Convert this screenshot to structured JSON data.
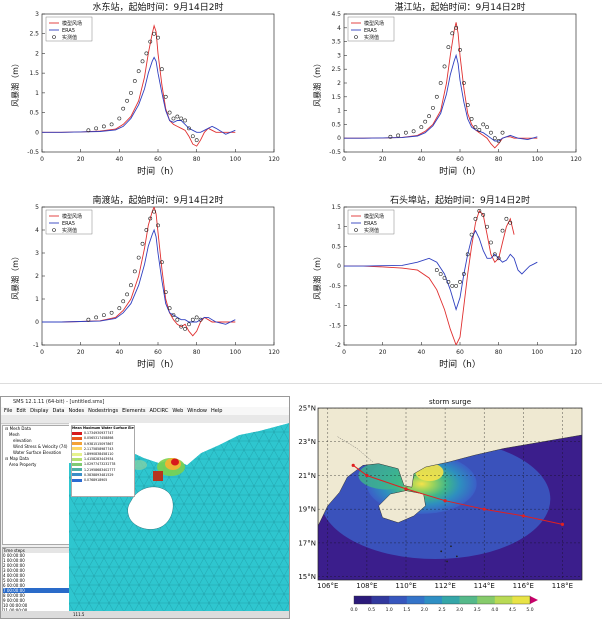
{
  "chart_data": [
    {
      "type": "line",
      "title": "水东站，起始时间：9月14日2时",
      "xlabel": "时间（h）",
      "ylabel": "风暴潮（m）",
      "xlim": [
        0,
        120
      ],
      "ylim": [
        -0.5,
        3
      ],
      "xticks": [
        "0",
        "20",
        "40",
        "60",
        "80",
        "100",
        "120"
      ],
      "yticks": [
        "-0.5",
        "0",
        "0.5",
        "1",
        "1.5",
        "2",
        "2.5",
        "3"
      ],
      "legend": [
        "模型风场",
        "ERA5",
        "实测值"
      ],
      "series": [
        {
          "name": "模型风场",
          "x": [
            0,
            10,
            20,
            30,
            38,
            42,
            46,
            50,
            53,
            55,
            57,
            58,
            59,
            60,
            62,
            64,
            66,
            68,
            70,
            72,
            74,
            76,
            78,
            80,
            82,
            84,
            86,
            88,
            90,
            95,
            100
          ],
          "y": [
            0,
            0,
            0.01,
            0.03,
            0.08,
            0.2,
            0.4,
            0.8,
            1.4,
            2.0,
            2.5,
            2.7,
            2.55,
            2.0,
            1.2,
            0.6,
            0.3,
            0.2,
            0.15,
            0.1,
            0.05,
            -0.1,
            -0.3,
            -0.35,
            -0.2,
            0,
            0.1,
            0.05,
            0,
            0,
            0
          ]
        },
        {
          "name": "ERA5",
          "x": [
            0,
            10,
            20,
            30,
            38,
            42,
            46,
            50,
            53,
            55,
            57,
            58,
            59,
            60,
            62,
            64,
            66,
            68,
            70,
            72,
            74,
            76,
            78,
            80,
            82,
            84,
            86,
            88,
            90,
            95,
            100
          ],
          "y": [
            0,
            0,
            0.01,
            0.02,
            0.06,
            0.15,
            0.35,
            0.7,
            1.1,
            1.5,
            1.8,
            1.9,
            1.8,
            1.5,
            1.0,
            0.55,
            0.3,
            0.25,
            0.3,
            0.3,
            0.2,
            0.1,
            0.05,
            0,
            0,
            0.05,
            0.1,
            0.15,
            0.1,
            -0.05,
            0.05
          ]
        },
        {
          "name": "实测值",
          "x": [
            24,
            28,
            32,
            36,
            40,
            42,
            44,
            46,
            48,
            50,
            52,
            54,
            56,
            58,
            60,
            62,
            64,
            66,
            68,
            70,
            72,
            74,
            76,
            78,
            80
          ],
          "y": [
            0.05,
            0.1,
            0.15,
            0.2,
            0.35,
            0.6,
            0.8,
            1.0,
            1.3,
            1.55,
            1.8,
            2.0,
            2.3,
            2.5,
            2.4,
            1.6,
            0.9,
            0.5,
            0.35,
            0.4,
            0.35,
            0.3,
            0.1,
            -0.1,
            -0.2
          ]
        }
      ]
    },
    {
      "type": "line",
      "title": "湛江站，起始时间：9月14日2时",
      "xlabel": "时间（h）",
      "ylabel": "风暴潮（m）",
      "xlim": [
        0,
        120
      ],
      "ylim": [
        -0.5,
        4.5
      ],
      "xticks": [
        "0",
        "20",
        "40",
        "60",
        "80",
        "100",
        "120"
      ],
      "yticks": [
        "-0.5",
        "0",
        "0.5",
        "1",
        "1.5",
        "2",
        "2.5",
        "3",
        "3.5",
        "4",
        "4.5"
      ],
      "legend": [
        "模型风场",
        "ERA5",
        "实测值"
      ],
      "series": [
        {
          "name": "模型风场",
          "x": [
            0,
            10,
            20,
            30,
            38,
            42,
            46,
            50,
            53,
            55,
            57,
            58,
            59,
            60,
            62,
            64,
            66,
            68,
            70,
            72,
            74,
            76,
            78,
            80,
            82,
            84,
            86,
            88,
            90,
            95,
            100
          ],
          "y": [
            0,
            0,
            0.01,
            0.03,
            0.1,
            0.25,
            0.5,
            1.0,
            2.0,
            3.0,
            3.9,
            4.2,
            3.8,
            3.0,
            1.8,
            0.9,
            0.5,
            0.3,
            0.2,
            0.1,
            0,
            -0.2,
            -0.35,
            -0.2,
            0,
            0.05,
            0.05,
            0,
            0,
            0,
            0
          ]
        },
        {
          "name": "ERA5",
          "x": [
            0,
            10,
            20,
            30,
            38,
            42,
            46,
            50,
            53,
            55,
            57,
            58,
            59,
            60,
            62,
            64,
            66,
            68,
            70,
            72,
            74,
            76,
            78,
            80,
            82,
            84,
            86,
            88,
            90,
            95,
            100
          ],
          "y": [
            0,
            0,
            0.01,
            0.02,
            0.08,
            0.2,
            0.45,
            0.9,
            1.6,
            2.3,
            2.8,
            3.0,
            2.7,
            2.1,
            1.3,
            0.7,
            0.4,
            0.3,
            0.25,
            0.2,
            0.1,
            0,
            -0.1,
            -0.1,
            0,
            0.05,
            0.1,
            0.05,
            0,
            -0.05,
            0.05
          ]
        },
        {
          "name": "实测值",
          "x": [
            24,
            28,
            32,
            36,
            40,
            42,
            44,
            46,
            48,
            50,
            52,
            54,
            56,
            58,
            60,
            62,
            64,
            66,
            68,
            70,
            72,
            74,
            76,
            78,
            80,
            82
          ],
          "y": [
            0.05,
            0.1,
            0.2,
            0.25,
            0.4,
            0.6,
            0.8,
            1.1,
            1.5,
            2.0,
            2.6,
            3.3,
            3.8,
            4.0,
            3.2,
            2.0,
            1.2,
            0.7,
            0.4,
            0.3,
            0.5,
            0.4,
            0.2,
            0,
            -0.1,
            0.2
          ]
        }
      ]
    },
    {
      "type": "line",
      "title": "南渡站，起始时间：9月14日2时",
      "xlabel": "时间（h）",
      "ylabel": "风暴潮（m）",
      "xlim": [
        0,
        120
      ],
      "ylim": [
        -1,
        5
      ],
      "xticks": [
        "0",
        "20",
        "40",
        "60",
        "80",
        "100",
        "120"
      ],
      "yticks": [
        "-1",
        "0",
        "1",
        "2",
        "3",
        "4",
        "5"
      ],
      "legend": [
        "模型风场",
        "ERA5",
        "实测值"
      ],
      "series": [
        {
          "name": "模型风场",
          "x": [
            0,
            10,
            20,
            30,
            38,
            42,
            46,
            50,
            53,
            55,
            57,
            58,
            59,
            60,
            62,
            64,
            66,
            68,
            70,
            72,
            74,
            76,
            78,
            80,
            82,
            84,
            86,
            88,
            90,
            95,
            100
          ],
          "y": [
            0,
            0,
            0.02,
            0.05,
            0.2,
            0.5,
            1.0,
            2.0,
            3.2,
            4.2,
            4.8,
            5.0,
            4.7,
            3.9,
            2.3,
            1.0,
            0.4,
            0.1,
            -0.1,
            -0.2,
            -0.1,
            -0.4,
            -0.6,
            -0.4,
            0,
            0.2,
            0.1,
            0,
            0,
            0,
            0
          ]
        },
        {
          "name": "ERA5",
          "x": [
            0,
            10,
            20,
            30,
            38,
            42,
            46,
            50,
            53,
            55,
            57,
            58,
            59,
            60,
            62,
            64,
            66,
            68,
            70,
            72,
            74,
            76,
            78,
            80,
            82,
            84,
            86,
            88,
            90,
            95,
            100
          ],
          "y": [
            0,
            0,
            0.02,
            0.04,
            0.15,
            0.4,
            0.8,
            1.6,
            2.5,
            3.3,
            3.8,
            4.0,
            3.7,
            3.0,
            1.8,
            0.8,
            0.4,
            0.3,
            0.2,
            0.1,
            0.1,
            0,
            0,
            0,
            0.1,
            0.2,
            0.2,
            0.1,
            0,
            -0.1,
            0.1
          ]
        },
        {
          "name": "实测值",
          "x": [
            24,
            28,
            32,
            36,
            40,
            42,
            44,
            46,
            48,
            50,
            52,
            54,
            56,
            58,
            60,
            62,
            64,
            66,
            68,
            70,
            72,
            74,
            76,
            78,
            80,
            82
          ],
          "y": [
            0.1,
            0.2,
            0.3,
            0.4,
            0.6,
            0.9,
            1.2,
            1.6,
            2.2,
            2.8,
            3.4,
            4.0,
            4.5,
            4.8,
            4.2,
            2.6,
            1.3,
            0.6,
            0.3,
            0.1,
            -0.2,
            -0.3,
            -0.1,
            0.1,
            0.2,
            0.1
          ]
        }
      ]
    },
    {
      "type": "line",
      "title": "石头埠站，起始时间：9月14日2时",
      "xlabel": "时间（h）",
      "ylabel": "风暴潮（m）",
      "xlim": [
        0,
        120
      ],
      "ylim": [
        -2,
        1.5
      ],
      "xticks": [
        "0",
        "20",
        "40",
        "60",
        "80",
        "100",
        "120"
      ],
      "yticks": [
        "-2",
        "-1.5",
        "-1",
        "-0.5",
        "0",
        "0.5",
        "1",
        "1.5"
      ],
      "legend": [
        "模型风场",
        "ERA5",
        "实测值"
      ],
      "series": [
        {
          "name": "模型风场",
          "x": [
            0,
            10,
            20,
            30,
            38,
            44,
            48,
            52,
            55,
            58,
            60,
            62,
            64,
            66,
            68,
            70,
            72,
            74,
            76,
            78,
            80,
            82,
            84,
            86,
            88
          ],
          "y": [
            0,
            0,
            -0.02,
            -0.05,
            -0.1,
            -0.3,
            -0.6,
            -1.1,
            -1.6,
            -2.0,
            -1.8,
            -1.0,
            -0.2,
            0.5,
            1.1,
            1.4,
            1.3,
            0.8,
            0.3,
            0.1,
            0.2,
            0.6,
            1.0,
            1.2,
            0.8
          ]
        },
        {
          "name": "ERA5",
          "x": [
            0,
            10,
            20,
            30,
            38,
            44,
            48,
            52,
            55,
            58,
            60,
            62,
            64,
            66,
            68,
            70,
            72,
            74,
            76,
            78,
            80,
            82,
            84,
            86,
            88,
            90,
            92,
            94,
            96,
            98,
            100
          ],
          "y": [
            0,
            0,
            0.01,
            0.02,
            0.1,
            0.2,
            0.1,
            -0.2,
            -0.6,
            -1.1,
            -0.8,
            -0.2,
            0.3,
            0.7,
            0.9,
            0.7,
            0.4,
            0.2,
            0.2,
            0.3,
            0.2,
            0.1,
            0.15,
            0.3,
            0.2,
            -0.1,
            -0.2,
            -0.1,
            0,
            0.05,
            0.1
          ]
        },
        {
          "name": "实测值",
          "x": [
            48,
            50,
            52,
            54,
            56,
            58,
            60,
            62,
            64,
            66,
            68,
            70,
            72,
            74,
            76,
            78,
            80,
            82,
            84,
            86
          ],
          "y": [
            -0.1,
            -0.2,
            -0.3,
            -0.4,
            -0.5,
            -0.5,
            -0.4,
            -0.2,
            0.3,
            0.8,
            1.2,
            1.4,
            1.3,
            1.0,
            0.6,
            0.3,
            0.2,
            0.9,
            1.2,
            1.1
          ]
        }
      ]
    },
    {
      "type": "heatmap",
      "title": "storm surge",
      "xticks": [
        "106°E",
        "108°E",
        "110°E",
        "112°E",
        "114°E",
        "116°E",
        "118°E"
      ],
      "yticks": [
        "25°N",
        "23°N",
        "21°N",
        "19°N",
        "17°N",
        "15°N"
      ],
      "colorbar_ticks": [
        "0.0",
        "0.5",
        "1.0",
        "1.5",
        "2.0",
        "2.5",
        "3.0",
        "3.5",
        "4.0",
        "4.5",
        "5.0"
      ],
      "colors": [
        "#3b1e8c",
        "#3b5fc7",
        "#2e8fbf",
        "#3fb68a",
        "#9fd55a",
        "#f5e24a"
      ],
      "track": {
        "lon": [
          118.0,
          116.0,
          114.0,
          112.0,
          110.0,
          108.0,
          107.3
        ],
        "lat": [
          18.1,
          18.6,
          19.0,
          19.5,
          20.2,
          21.0,
          21.6
        ]
      }
    }
  ],
  "sms": {
    "title": "SMS 12.1.11 (64-bit) - [untitled.sms]",
    "menus": [
      "File",
      "Edit",
      "Display",
      "Data",
      "Nodes",
      "Nodestrings",
      "Elements",
      "ADCIRC",
      "Web",
      "Window",
      "Help"
    ],
    "tree": [
      "Mesh Data",
      "Mesh",
      "elevation",
      "Wind Stress & Velocity (74)",
      "Water Surface Elevation",
      "Map Data",
      "Area Property"
    ],
    "legend_title": "Mean Maximum Water Surface Elevation (66)",
    "legend_values": [
      "0.1734930937747",
      "0.0565317458898",
      "0.9381515097867",
      "2.1175858987743",
      "1.8990838458110",
      "1.4158283443934",
      "1.02977473232778",
      "1.21958683402777",
      "0.3838893481529",
      "0.0768918905"
    ],
    "time_label": "Time steps",
    "time_steps": [
      "0 00:00:00",
      "1 00:00:00",
      "2 00:00:00",
      "3 00:00:00",
      "4 00:00:00",
      "5 00:00:00",
      "6 00:00:00",
      "7 00:00:00",
      "8 00:00:00",
      "9 00:00:00",
      "10 00:00:00",
      "11 00:00:00"
    ],
    "status": "111.5"
  }
}
